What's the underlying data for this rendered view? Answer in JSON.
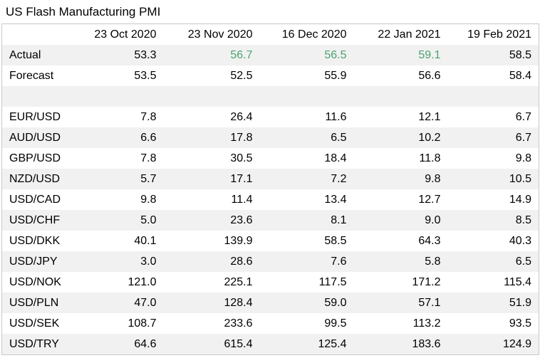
{
  "title": "US Flash Manufacturing PMI",
  "chart_data": {
    "type": "table",
    "title": "US Flash Manufacturing PMI",
    "columns": [
      "23 Oct 2020",
      "23 Nov 2020",
      "16 Dec 2020",
      "22 Jan 2021",
      "19 Feb 2021"
    ],
    "rows": [
      {
        "label": "Actual",
        "values": [
          "53.3",
          "56.7",
          "56.5",
          "59.1",
          "58.5"
        ]
      },
      {
        "label": "Forecast",
        "values": [
          "53.5",
          "52.5",
          "55.9",
          "56.6",
          "58.4"
        ]
      },
      {
        "label": "",
        "values": [
          "",
          "",
          "",
          "",
          ""
        ]
      },
      {
        "label": "EUR/USD",
        "values": [
          "7.8",
          "26.4",
          "11.6",
          "12.1",
          "6.7"
        ]
      },
      {
        "label": "AUD/USD",
        "values": [
          "6.6",
          "17.8",
          "6.5",
          "10.2",
          "6.7"
        ]
      },
      {
        "label": "GBP/USD",
        "values": [
          "7.8",
          "30.5",
          "18.4",
          "11.8",
          "9.8"
        ]
      },
      {
        "label": "NZD/USD",
        "values": [
          "5.7",
          "17.1",
          "7.2",
          "9.8",
          "10.5"
        ]
      },
      {
        "label": "USD/CAD",
        "values": [
          "9.8",
          "11.4",
          "13.4",
          "12.7",
          "14.9"
        ]
      },
      {
        "label": "USD/CHF",
        "values": [
          "5.0",
          "23.6",
          "8.1",
          "9.0",
          "8.5"
        ]
      },
      {
        "label": "USD/DKK",
        "values": [
          "40.1",
          "139.9",
          "58.5",
          "64.3",
          "40.3"
        ]
      },
      {
        "label": "USD/JPY",
        "values": [
          "3.0",
          "28.6",
          "7.6",
          "5.8",
          "6.5"
        ]
      },
      {
        "label": "USD/NOK",
        "values": [
          "121.0",
          "225.1",
          "117.5",
          "171.2",
          "115.4"
        ]
      },
      {
        "label": "USD/PLN",
        "values": [
          "47.0",
          "128.4",
          "59.0",
          "57.1",
          "51.9"
        ]
      },
      {
        "label": "USD/SEK",
        "values": [
          "108.7",
          "233.6",
          "99.5",
          "113.2",
          "93.5"
        ]
      },
      {
        "label": "USD/TRY",
        "values": [
          "64.6",
          "615.4",
          "125.4",
          "183.6",
          "124.9"
        ]
      }
    ],
    "highlighted_actuals": [
      "23 Nov 2020",
      "16 Dec 2020",
      "22 Jan 2021"
    ],
    "colors": {
      "highlight": "#4aa36f",
      "shade": "#f1f1f1",
      "border": "#c8c8c8"
    }
  }
}
